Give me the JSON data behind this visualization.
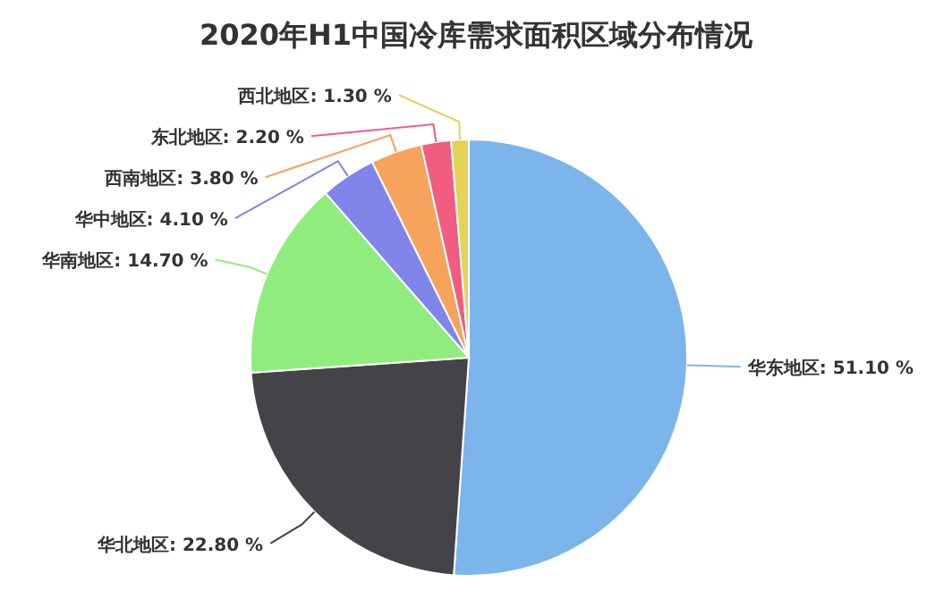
{
  "chart_data": {
    "type": "pie",
    "title": "2020年H1中国冷库需求面积区域分布情况",
    "categories": [
      "华东地区",
      "华北地区",
      "华南地区",
      "华中地区",
      "西南地区",
      "东北地区",
      "西北地区"
    ],
    "values": [
      51.1,
      22.8,
      14.7,
      4.1,
      3.8,
      2.2,
      1.3
    ],
    "colors": [
      "#7cb5ec",
      "#434348",
      "#90ed7d",
      "#8085e9",
      "#f7a35c",
      "#f15c80",
      "#e4d354"
    ],
    "value_labels": [
      "51.10 %",
      "22.80 %",
      "14.70 %",
      "4.10 %",
      "3.80 %",
      "2.20 %",
      "1.30 %"
    ]
  }
}
